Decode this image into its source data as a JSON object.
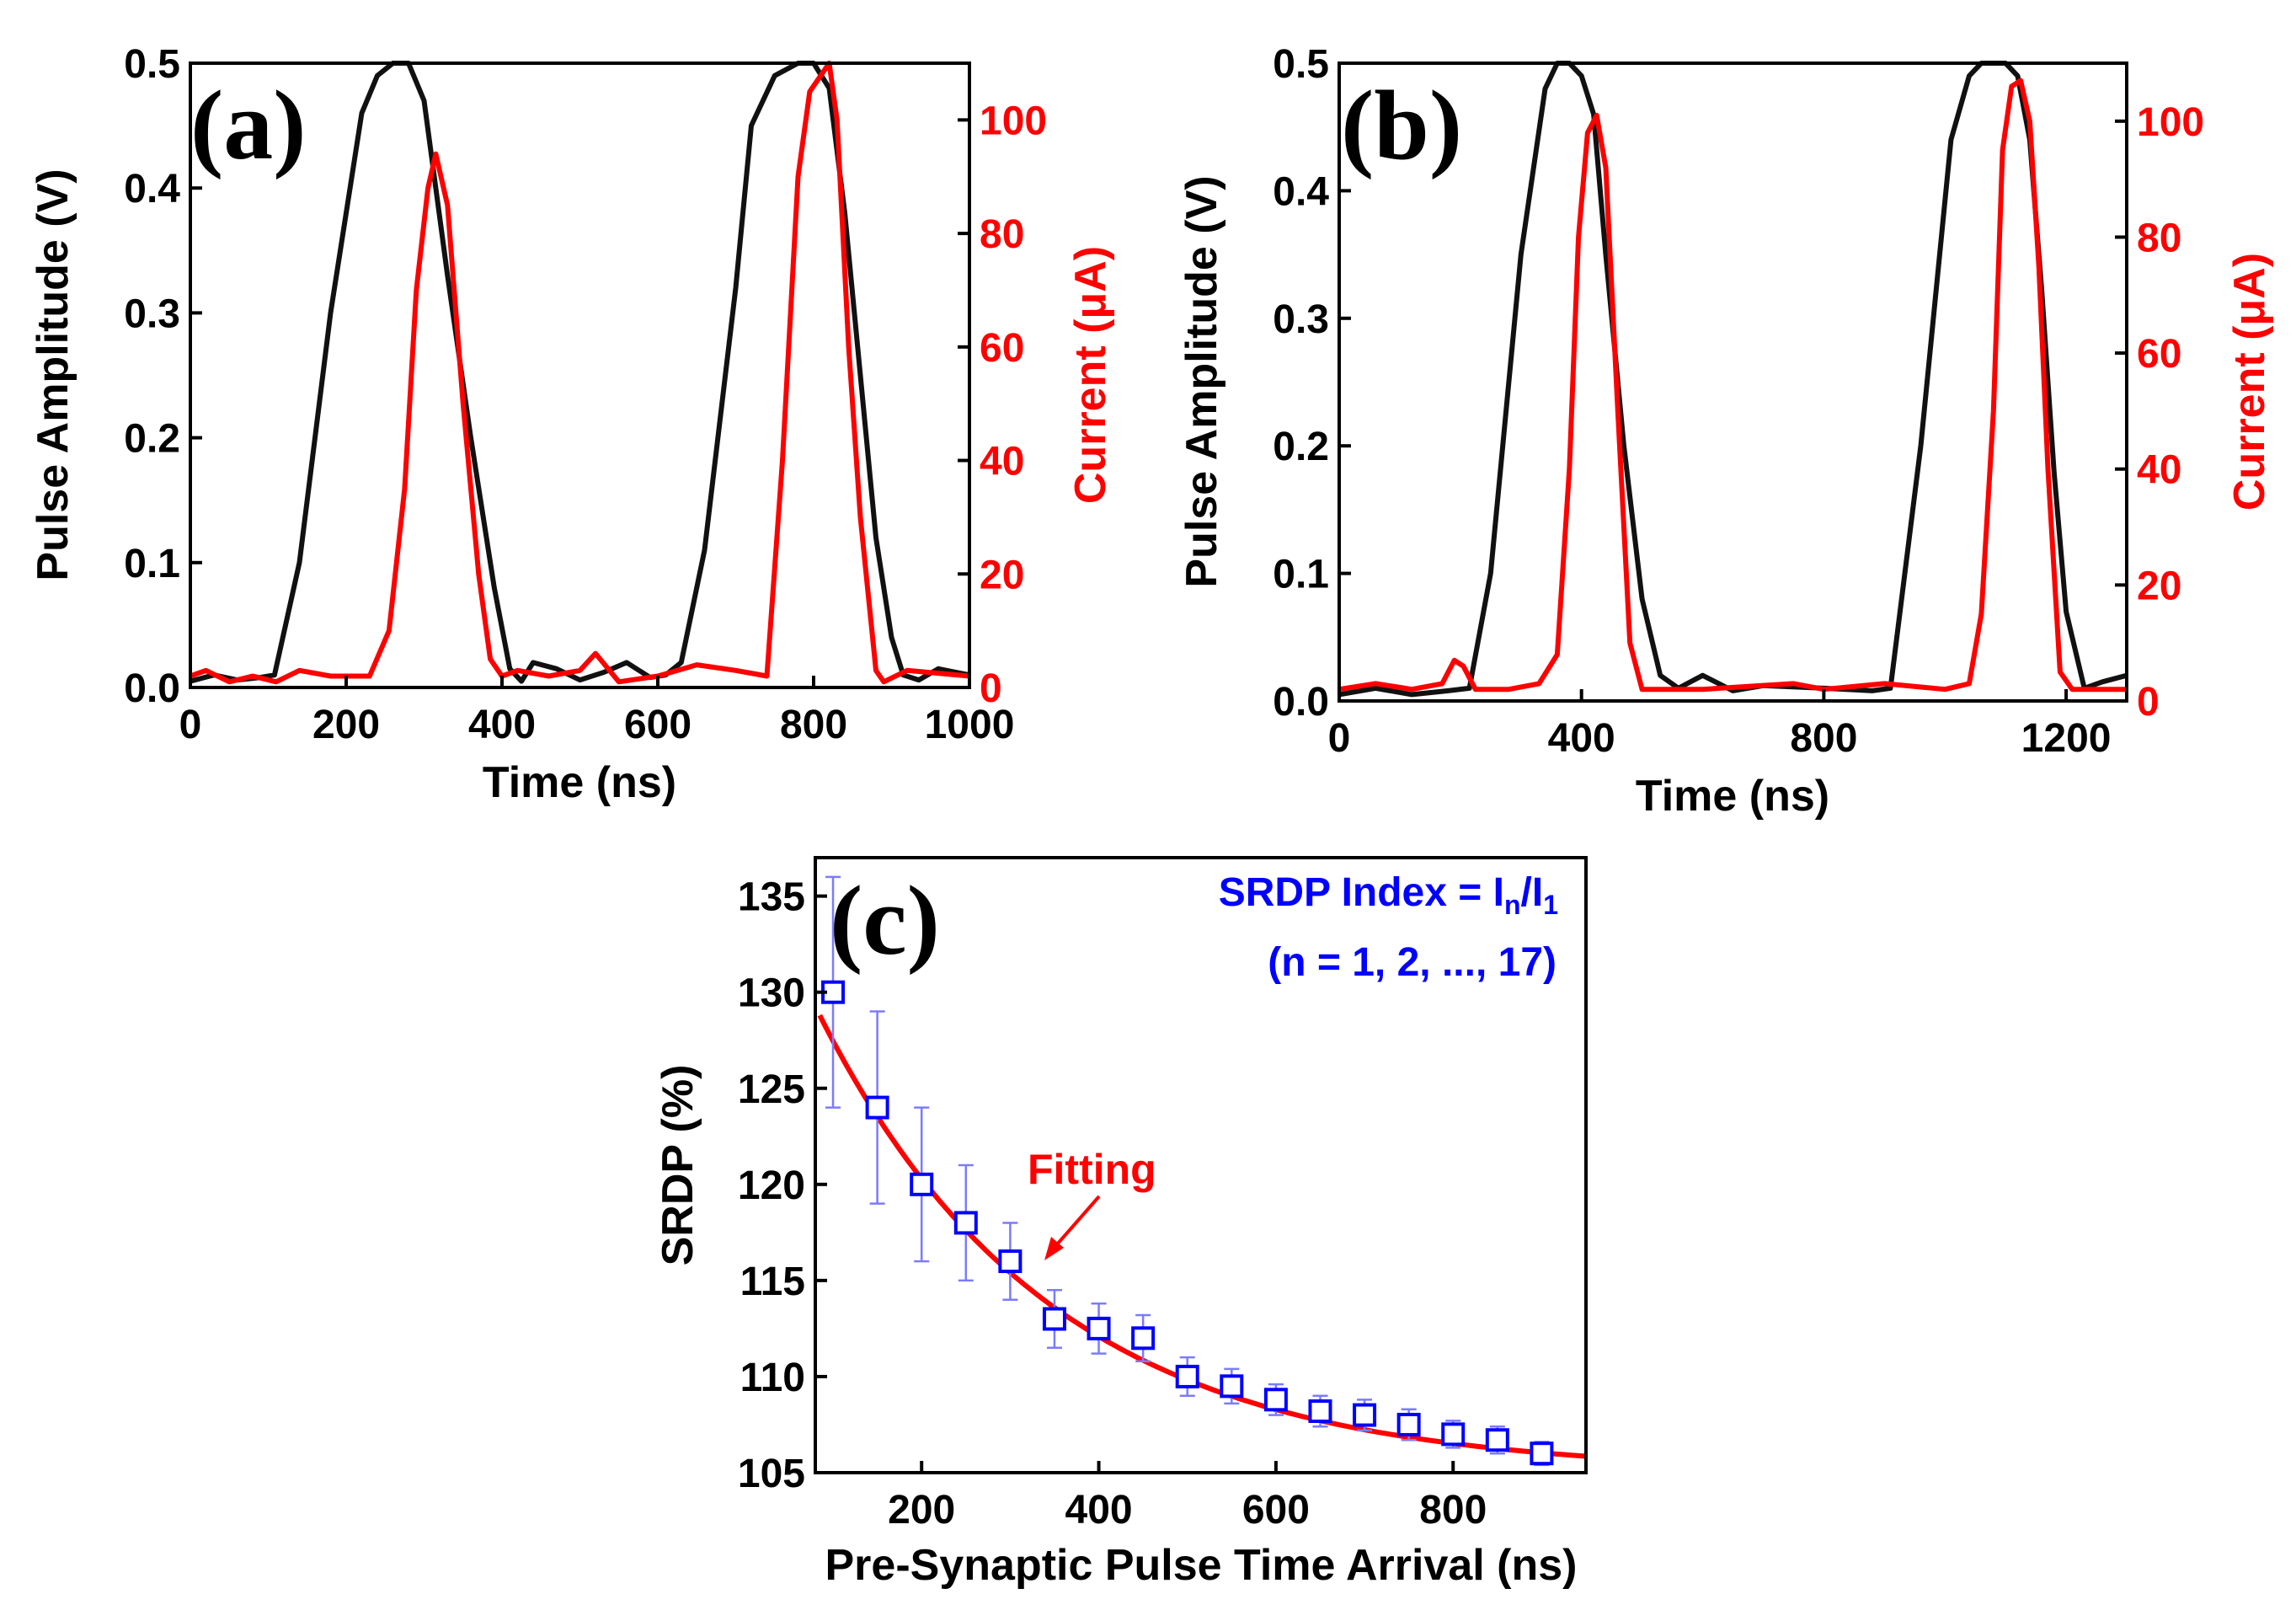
{
  "chart_data": [
    {
      "id": "a",
      "type": "line",
      "panel_label": "(a)",
      "xlabel": "Time (ns)",
      "ylabel": "Pulse Amplitude (V)",
      "y2label": "Current (μA)",
      "xlim": [
        0,
        1000
      ],
      "ylim": [
        0,
        0.5
      ],
      "y2lim": [
        0,
        110
      ],
      "xticks": [
        "0",
        "200",
        "400",
        "600",
        "800",
        "1000"
      ],
      "yticks": [
        "0.0",
        "0.1",
        "0.2",
        "0.3",
        "0.4",
        "0.5"
      ],
      "y2ticks": [
        "0",
        "20",
        "40",
        "60",
        "80",
        "100"
      ],
      "colors": {
        "voltage": "#111111",
        "current": "#ff0000"
      },
      "series": [
        {
          "name": "Pulse Amplitude",
          "axis": "left",
          "x": [
            0,
            30,
            60,
            90,
            108,
            140,
            180,
            220,
            240,
            260,
            280,
            300,
            330,
            360,
            390,
            410,
            425,
            440,
            470,
            500,
            530,
            560,
            590,
            610,
            630,
            660,
            700,
            720,
            750,
            780,
            800,
            820,
            840,
            860,
            880,
            900,
            915,
            935,
            960,
            1000
          ],
          "y": [
            0.005,
            0.01,
            0.006,
            0.008,
            0.01,
            0.1,
            0.3,
            0.46,
            0.49,
            0.5,
            0.5,
            0.47,
            0.33,
            0.2,
            0.08,
            0.015,
            0.005,
            0.02,
            0.015,
            0.006,
            0.012,
            0.02,
            0.008,
            0.01,
            0.02,
            0.11,
            0.32,
            0.45,
            0.49,
            0.5,
            0.5,
            0.48,
            0.38,
            0.25,
            0.12,
            0.04,
            0.01,
            0.006,
            0.015,
            0.01
          ]
        },
        {
          "name": "Current",
          "axis": "right",
          "x": [
            0,
            20,
            50,
            80,
            110,
            140,
            180,
            210,
            230,
            255,
            275,
            290,
            305,
            315,
            330,
            350,
            370,
            385,
            400,
            420,
            460,
            500,
            520,
            550,
            600,
            650,
            700,
            740,
            760,
            780,
            795,
            810,
            820,
            830,
            845,
            860,
            880,
            890,
            920,
            1000
          ],
          "y": [
            2,
            3,
            1,
            2,
            1,
            3,
            2,
            2,
            2,
            10,
            35,
            70,
            88,
            94,
            85,
            50,
            20,
            5,
            2,
            3,
            2,
            3,
            6,
            1,
            2,
            4,
            3,
            2,
            40,
            90,
            105,
            108,
            110,
            100,
            60,
            30,
            3,
            1,
            3,
            2
          ]
        }
      ]
    },
    {
      "id": "b",
      "type": "line",
      "panel_label": "(b)",
      "xlabel": "Time (ns)",
      "ylabel": "Pulse Amplitude (V)",
      "y2label": "Current (μA)",
      "xlim": [
        0,
        1300
      ],
      "ylim": [
        0,
        0.5
      ],
      "y2lim": [
        0,
        110
      ],
      "xticks": [
        "0",
        "400",
        "800",
        "1200"
      ],
      "yticks": [
        "0.0",
        "0.1",
        "0.2",
        "0.3",
        "0.4",
        "0.5"
      ],
      "y2ticks": [
        "0",
        "20",
        "40",
        "60",
        "80",
        "100"
      ],
      "colors": {
        "voltage": "#111111",
        "current": "#ff0000"
      },
      "series": [
        {
          "name": "Pulse Amplitude",
          "axis": "left",
          "x": [
            0,
            60,
            120,
            180,
            215,
            250,
            300,
            340,
            360,
            380,
            400,
            420,
            440,
            470,
            500,
            530,
            560,
            600,
            650,
            700,
            800,
            880,
            910,
            960,
            1010,
            1040,
            1060,
            1080,
            1100,
            1120,
            1140,
            1160,
            1180,
            1200,
            1230,
            1260,
            1300
          ],
          "y": [
            0.005,
            0.01,
            0.005,
            0.008,
            0.01,
            0.1,
            0.35,
            0.48,
            0.5,
            0.5,
            0.49,
            0.46,
            0.35,
            0.2,
            0.08,
            0.02,
            0.01,
            0.02,
            0.008,
            0.012,
            0.01,
            0.008,
            0.01,
            0.2,
            0.44,
            0.49,
            0.5,
            0.5,
            0.5,
            0.49,
            0.44,
            0.32,
            0.18,
            0.07,
            0.01,
            0.015,
            0.02
          ]
        },
        {
          "name": "Current",
          "axis": "right",
          "x": [
            0,
            60,
            120,
            170,
            190,
            205,
            225,
            280,
            330,
            360,
            380,
            395,
            410,
            425,
            440,
            460,
            480,
            500,
            600,
            750,
            800,
            900,
            1000,
            1040,
            1060,
            1080,
            1095,
            1110,
            1125,
            1140,
            1155,
            1170,
            1190,
            1210,
            1300
          ],
          "y": [
            2,
            3,
            2,
            3,
            7,
            6,
            2,
            2,
            3,
            8,
            40,
            80,
            98,
            101,
            92,
            50,
            10,
            2,
            2,
            3,
            2,
            3,
            2,
            3,
            15,
            50,
            95,
            106,
            107,
            100,
            75,
            40,
            5,
            2,
            2
          ]
        }
      ]
    },
    {
      "id": "c",
      "type": "scatter",
      "panel_label": "(c)",
      "xlabel": "Pre-Synaptic Pulse Time Arrival (ns)",
      "ylabel": "SRDP (%)",
      "xlim": [
        80,
        950
      ],
      "ylim": [
        105,
        137
      ],
      "xticks": [
        "200",
        "400",
        "600",
        "800"
      ],
      "yticks": [
        "105",
        "110",
        "115",
        "120",
        "125",
        "130",
        "135"
      ],
      "annotation": "Fitting",
      "legend_line1_prefix": "SRDP Index = I",
      "legend_line1_sub1": "n",
      "legend_line1_mid": "/I",
      "legend_line1_sub2": "1",
      "legend_line2": "(n = 1, 2, ..., 17)",
      "colors": {
        "points": "#0000ff",
        "fit": "#ff0000",
        "errorbars": "#7b7bff"
      },
      "x": [
        100,
        150,
        200,
        250,
        300,
        350,
        400,
        450,
        500,
        550,
        600,
        650,
        700,
        750,
        800,
        850,
        900
      ],
      "y": [
        130,
        124,
        120,
        118,
        116,
        113,
        112.5,
        112,
        110,
        109.5,
        108.8,
        108.2,
        108,
        107.5,
        107,
        106.7,
        106
      ],
      "yerr": [
        6,
        5,
        4,
        3,
        2,
        1.5,
        1.3,
        1.2,
        1,
        0.9,
        0.8,
        0.8,
        0.8,
        0.8,
        0.7,
        0.7,
        0.6
      ],
      "fit": {
        "model": "exponential",
        "y0": 105,
        "A": 33,
        "tau": 260
      }
    }
  ]
}
